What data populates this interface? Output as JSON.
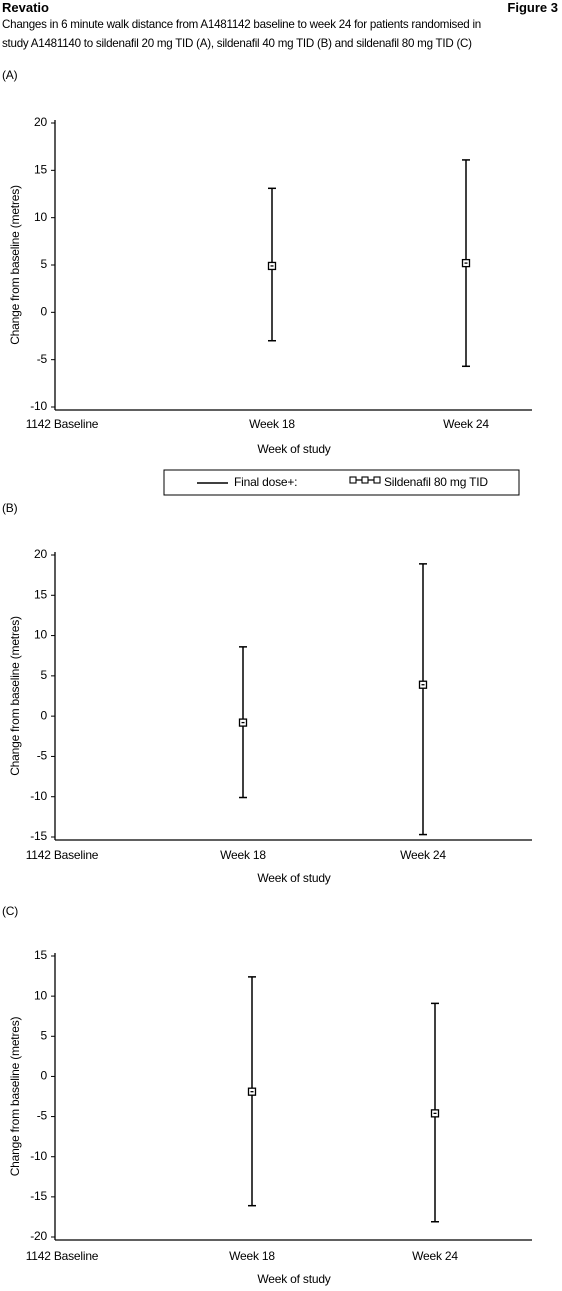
{
  "header": {
    "title": "Revatio",
    "figure": "Figure 3"
  },
  "caption": [
    "Changes in 6 minute walk distance from A1481142 baseline to week 24 for patients randomised in",
    "study A1481140 to sildenafil 20 mg TID (A), sildenafil 40 mg TID (B) and sildenafil 80 mg TID (C)"
  ],
  "chart_data": [
    {
      "type": "errorbar",
      "panel": "(A)",
      "x_label": "Week of study",
      "y_label": "Change from baseline (metres)",
      "categories": [
        "1142 Baseline",
        "Week 18",
        "Week 24"
      ],
      "ylim": [
        -10,
        20
      ],
      "yticks": [
        -10,
        -5,
        0,
        5,
        10,
        15,
        20
      ],
      "legend_title": "Final dose+:",
      "series": [
        {
          "name": "Sildenafil 80 mg TID",
          "color": "#000000",
          "values": [
            null,
            4.9,
            5.2
          ],
          "lower": [
            null,
            -3.0,
            -5.7
          ],
          "upper": [
            null,
            13.1,
            16.1
          ]
        }
      ]
    },
    {
      "type": "errorbar",
      "panel": "(B)",
      "x_label": "Week of study",
      "y_label": "Change from baseline (metres)",
      "categories": [
        "1142 Baseline",
        "Week 18",
        "Week 24"
      ],
      "ylim": [
        -15,
        20
      ],
      "yticks": [
        -15,
        -10,
        -5,
        0,
        5,
        10,
        15,
        20
      ],
      "series": [
        {
          "color": "#000000",
          "values": [
            null,
            -0.8,
            3.9
          ],
          "lower": [
            null,
            -10.1,
            -14.7
          ],
          "upper": [
            null,
            8.6,
            18.9
          ]
        }
      ]
    },
    {
      "type": "errorbar",
      "panel": "(C)",
      "x_label": "Week of study",
      "y_label": "Change from baseline (metres)",
      "categories": [
        "1142 Baseline",
        "Week 18",
        "Week 24"
      ],
      "ylim": [
        -20,
        15
      ],
      "yticks": [
        -20,
        -15,
        -10,
        -5,
        0,
        5,
        10,
        15
      ],
      "series": [
        {
          "color": "#000000",
          "values": [
            null,
            -1.9,
            -4.6
          ],
          "lower": [
            null,
            -16.1,
            -18.1
          ],
          "upper": [
            null,
            12.4,
            9.1
          ]
        }
      ]
    }
  ]
}
